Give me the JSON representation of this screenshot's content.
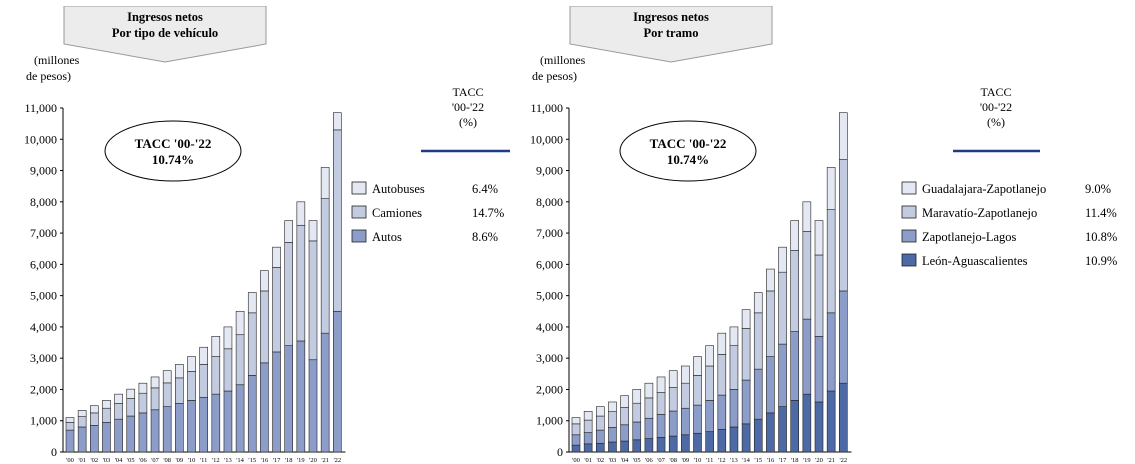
{
  "charts": [
    {
      "title_line1": "Ingresos netos",
      "title_line2": "Por tipo de vehículo",
      "ylabel_line1": "(millones",
      "ylabel_line2": "de pesos)",
      "tacc_header": [
        "TACC",
        "'00-'22",
        "(%)"
      ],
      "ellipse_line1": "TACC '00-'22",
      "ellipse_line2": "10.74%"
    },
    {
      "title_line1": "Ingresos netos",
      "title_line2": "Por tramo",
      "ylabel_line1": "(millones",
      "ylabel_line2": "de pesos)",
      "tacc_header": [
        "TACC",
        "'00-'22",
        "(%)"
      ],
      "ellipse_line1": "TACC '00-'22",
      "ellipse_line2": "10.74%"
    }
  ],
  "chart_data": [
    {
      "type": "bar",
      "stacked": true,
      "categories": [
        "'00",
        "'01",
        "'02",
        "'03",
        "'04",
        "'05",
        "'06",
        "'07",
        "'08",
        "'09",
        "'10",
        "'11",
        "'12",
        "'13",
        "'14",
        "'15",
        "'16",
        "'17",
        "'18",
        "'19",
        "'20",
        "'21",
        "'22"
      ],
      "ylim": [
        0,
        11000
      ],
      "yticks": [
        0,
        1000,
        2000,
        3000,
        4000,
        5000,
        6000,
        7000,
        8000,
        9000,
        10000,
        11000
      ],
      "ytick_labels": [
        "0",
        "1,000",
        "2,000",
        "3,000",
        "4,000",
        "5,000",
        "6,000",
        "7,000",
        "8,000",
        "9,000",
        "10,000",
        "11,000"
      ],
      "colors": {
        "Autos": "#8b9dc8",
        "Camiones": "#c3cbe0",
        "Autobuses": "#e3e8f2"
      },
      "series": [
        {
          "name": "Autos",
          "tacc": "8.6%",
          "values": [
            700,
            800,
            850,
            950,
            1050,
            1150,
            1250,
            1350,
            1450,
            1550,
            1650,
            1750,
            1850,
            1950,
            2150,
            2450,
            2850,
            3200,
            3400,
            3550,
            2950,
            3800,
            4500
          ]
        },
        {
          "name": "Camiones",
          "tacc": "14.7%",
          "values": [
            250,
            330,
            400,
            450,
            500,
            560,
            630,
            700,
            760,
            820,
            930,
            1050,
            1200,
            1350,
            1600,
            2000,
            2300,
            2700,
            3300,
            3700,
            3800,
            4300,
            5800
          ]
        },
        {
          "name": "Autobuses",
          "tacc": "6.4%",
          "values": [
            150,
            200,
            230,
            250,
            300,
            300,
            320,
            350,
            390,
            430,
            470,
            550,
            650,
            700,
            750,
            650,
            650,
            650,
            700,
            750,
            650,
            1000,
            550
          ]
        }
      ],
      "legend_order": [
        "Autobuses",
        "Camiones",
        "Autos"
      ]
    },
    {
      "type": "bar",
      "stacked": true,
      "categories": [
        "'00",
        "'01",
        "'02",
        "'03",
        "'04",
        "'05",
        "'06",
        "'07",
        "'08",
        "'09",
        "'10",
        "'11",
        "'12",
        "'13",
        "'14",
        "'15",
        "'16",
        "'17",
        "'18",
        "'19",
        "'20",
        "'21",
        "'22"
      ],
      "ylim": [
        0,
        11000
      ],
      "yticks": [
        0,
        1000,
        2000,
        3000,
        4000,
        5000,
        6000,
        7000,
        8000,
        9000,
        10000,
        11000
      ],
      "ytick_labels": [
        "0",
        "1,000",
        "2,000",
        "3,000",
        "4,000",
        "5,000",
        "6,000",
        "7,000",
        "8,000",
        "9,000",
        "10,000",
        "11,000"
      ],
      "colors": {
        "León-Aguascalientes": "#4d6aa6",
        "Zapotlanejo-Lagos": "#8b9dc8",
        "Maravatío-Zapotlanejo": "#c3cbe0",
        "Guadalajara-Zapotlanejo": "#e3e8f2"
      },
      "series": [
        {
          "name": "León-Aguascalientes",
          "tacc": "10.9%",
          "values": [
            220,
            260,
            280,
            320,
            350,
            390,
            430,
            470,
            510,
            550,
            600,
            650,
            720,
            800,
            900,
            1050,
            1250,
            1450,
            1650,
            1850,
            1600,
            1950,
            2200
          ]
        },
        {
          "name": "Zapotlanejo-Lagos",
          "tacc": "10.8%",
          "values": [
            330,
            360,
            420,
            470,
            520,
            570,
            650,
            730,
            800,
            850,
            900,
            1000,
            1100,
            1200,
            1400,
            1600,
            1800,
            2000,
            2200,
            2400,
            2100,
            2500,
            2950
          ]
        },
        {
          "name": "Maravatío-Zapotlanejo",
          "tacc": "11.4%",
          "values": [
            350,
            400,
            450,
            500,
            550,
            600,
            650,
            700,
            750,
            800,
            950,
            1100,
            1300,
            1400,
            1650,
            1800,
            2100,
            2300,
            2600,
            2800,
            2600,
            3300,
            4200
          ]
        },
        {
          "name": "Guadalajara-Zapotlanejo",
          "tacc": "9.0%",
          "values": [
            200,
            280,
            300,
            310,
            380,
            440,
            470,
            500,
            540,
            550,
            600,
            650,
            680,
            600,
            600,
            650,
            700,
            800,
            950,
            950,
            1100,
            1350,
            1500
          ]
        }
      ],
      "legend_order": [
        "Guadalajara-Zapotlanejo",
        "Maravatío-Zapotlanejo",
        "Zapotlanejo-Lagos",
        "León-Aguascalientes"
      ]
    }
  ]
}
